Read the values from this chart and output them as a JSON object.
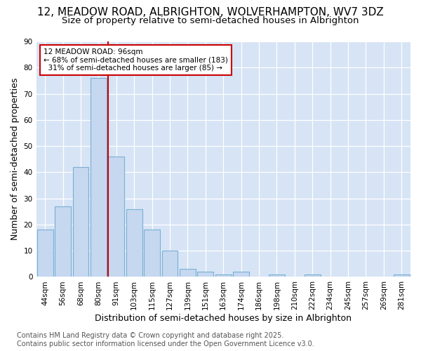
{
  "title1": "12, MEADOW ROAD, ALBRIGHTON, WOLVERHAMPTON, WV7 3DZ",
  "title2": "Size of property relative to semi-detached houses in Albrighton",
  "xlabel": "Distribution of semi-detached houses by size in Albrighton",
  "ylabel": "Number of semi-detached properties",
  "categories": [
    "44sqm",
    "56sqm",
    "68sqm",
    "80sqm",
    "91sqm",
    "103sqm",
    "115sqm",
    "127sqm",
    "139sqm",
    "151sqm",
    "163sqm",
    "174sqm",
    "186sqm",
    "198sqm",
    "210sqm",
    "222sqm",
    "234sqm",
    "245sqm",
    "257sqm",
    "269sqm",
    "281sqm"
  ],
  "values": [
    18,
    27,
    42,
    76,
    46,
    26,
    18,
    10,
    3,
    2,
    1,
    2,
    0,
    1,
    0,
    1,
    0,
    0,
    0,
    0,
    1
  ],
  "bar_color": "#c5d8f0",
  "bar_edge_color": "#7aafd4",
  "vline_color": "#cc0000",
  "annotation_text": "12 MEADOW ROAD: 96sqm\n← 68% of semi-detached houses are smaller (183)\n  31% of semi-detached houses are larger (85) →",
  "annotation_box_color": "#ffffff",
  "annotation_box_edge": "#cc0000",
  "ylim": [
    0,
    90
  ],
  "yticks": [
    0,
    10,
    20,
    30,
    40,
    50,
    60,
    70,
    80,
    90
  ],
  "plot_bg_color": "#d6e4f5",
  "fig_bg_color": "#ffffff",
  "footer": "Contains HM Land Registry data © Crown copyright and database right 2025.\nContains public sector information licensed under the Open Government Licence v3.0.",
  "title1_fontsize": 11,
  "title2_fontsize": 9.5,
  "xlabel_fontsize": 9,
  "ylabel_fontsize": 9,
  "tick_fontsize": 7.5,
  "footer_fontsize": 7
}
